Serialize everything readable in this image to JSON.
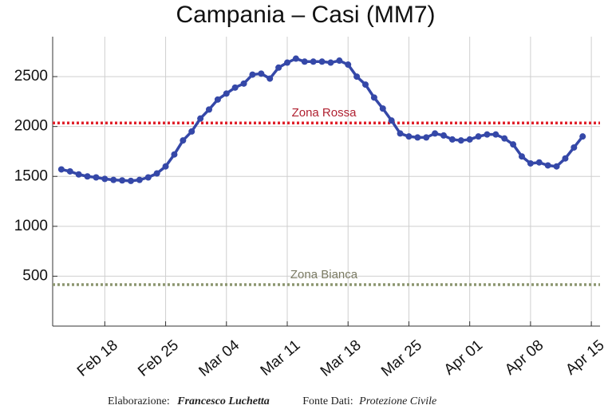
{
  "chart_data": {
    "type": "line",
    "title": "Campania – Casi (MM7)",
    "x": [
      "Feb 13",
      "Feb 14",
      "Feb 15",
      "Feb 16",
      "Feb 17",
      "Feb 18",
      "Feb 19",
      "Feb 20",
      "Feb 21",
      "Feb 22",
      "Feb 23",
      "Feb 24",
      "Feb 25",
      "Feb 26",
      "Feb 27",
      "Feb 28",
      "Mar 01",
      "Mar 02",
      "Mar 03",
      "Mar 04",
      "Mar 05",
      "Mar 06",
      "Mar 07",
      "Mar 08",
      "Mar 09",
      "Mar 10",
      "Mar 11",
      "Mar 12",
      "Mar 13",
      "Mar 14",
      "Mar 15",
      "Mar 16",
      "Mar 17",
      "Mar 18",
      "Mar 19",
      "Mar 20",
      "Mar 21",
      "Mar 22",
      "Mar 23",
      "Mar 24",
      "Mar 25",
      "Mar 26",
      "Mar 27",
      "Mar 28",
      "Mar 29",
      "Mar 30",
      "Mar 31",
      "Apr 01",
      "Apr 02",
      "Apr 03",
      "Apr 04",
      "Apr 05",
      "Apr 06",
      "Apr 07",
      "Apr 08",
      "Apr 09",
      "Apr 10",
      "Apr 11",
      "Apr 12",
      "Apr 13",
      "Apr 14"
    ],
    "series": [
      {
        "name": "Casi (MM7)",
        "color": "#3548a8",
        "values": [
          1570,
          1550,
          1520,
          1500,
          1490,
          1475,
          1465,
          1460,
          1455,
          1465,
          1490,
          1530,
          1600,
          1720,
          1860,
          1950,
          2080,
          2170,
          2270,
          2330,
          2390,
          2430,
          2520,
          2530,
          2480,
          2590,
          2640,
          2680,
          2650,
          2650,
          2650,
          2640,
          2660,
          2620,
          2500,
          2420,
          2290,
          2180,
          2060,
          1930,
          1900,
          1890,
          1890,
          1930,
          1910,
          1870,
          1860,
          1870,
          1900,
          1920,
          1920,
          1880,
          1820,
          1700,
          1630,
          1640,
          1610,
          1600,
          1680,
          1790,
          1900
        ]
      }
    ],
    "xlim": [
      "Feb 12",
      "Apr 16"
    ],
    "xticks": [
      "Feb 18",
      "Feb 25",
      "Mar 04",
      "Mar 11",
      "Mar 18",
      "Mar 25",
      "Apr 01",
      "Apr 08",
      "Apr 15"
    ],
    "ylim": [
      0,
      2900
    ],
    "yticks": [
      500,
      1000,
      1500,
      2000,
      2500
    ],
    "grid": true,
    "reference_lines": [
      {
        "label": "Zona Rossa",
        "value": 2035,
        "color": "#e0202a",
        "label_color": "#b02030"
      },
      {
        "label": "Zona Bianca",
        "value": 415,
        "color": "#8c9670",
        "label_color": "#7a7a62"
      }
    ]
  },
  "footer": {
    "credit_label": "Elaborazione:",
    "credit_name": "Francesco Luchetta",
    "source_label": "Fonte Dati:",
    "source_name": "Protezione Civile"
  }
}
